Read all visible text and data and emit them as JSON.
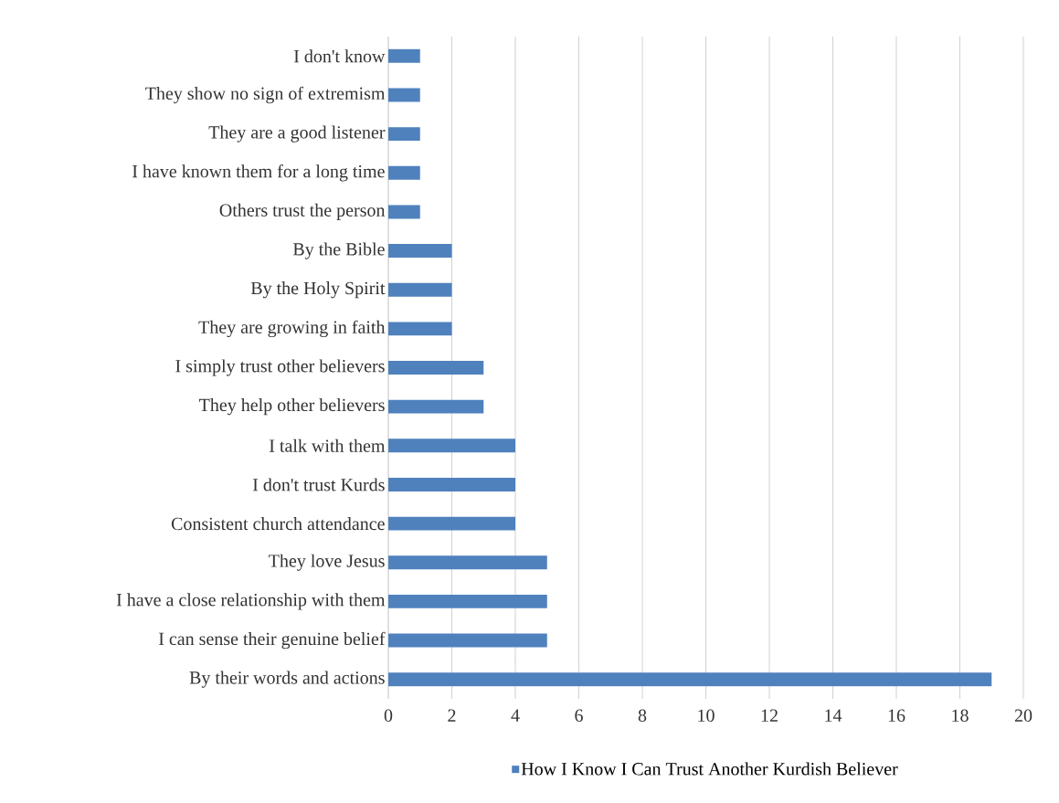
{
  "chart_data": {
    "type": "bar",
    "orientation": "horizontal",
    "categories": [
      "I don't know",
      "They show no sign of extremism",
      "They are a good listener",
      "I have known them for a long time",
      "Others trust the person",
      "By the Bible",
      "By the Holy Spirit",
      "They are growing in faith",
      "I simply trust other believers",
      "They help other believers",
      "I talk with them",
      "I don't trust Kurds",
      "Consistent church attendance",
      "They love Jesus",
      "I have a close relationship with them",
      "I can sense their genuine belief",
      "By their words and actions"
    ],
    "series": [
      {
        "name": "How I Know I Can Trust Another Kurdish Believer",
        "color": "#4f81bd",
        "values": [
          1,
          1,
          1,
          1,
          1,
          2,
          2,
          2,
          3,
          3,
          4,
          4,
          4,
          5,
          5,
          5,
          19
        ]
      }
    ],
    "xlim": [
      0,
      20
    ],
    "xticks": [
      0,
      2,
      4,
      6,
      8,
      10,
      12,
      14,
      16,
      18,
      20
    ],
    "grid": "x",
    "legend": "bottom"
  }
}
